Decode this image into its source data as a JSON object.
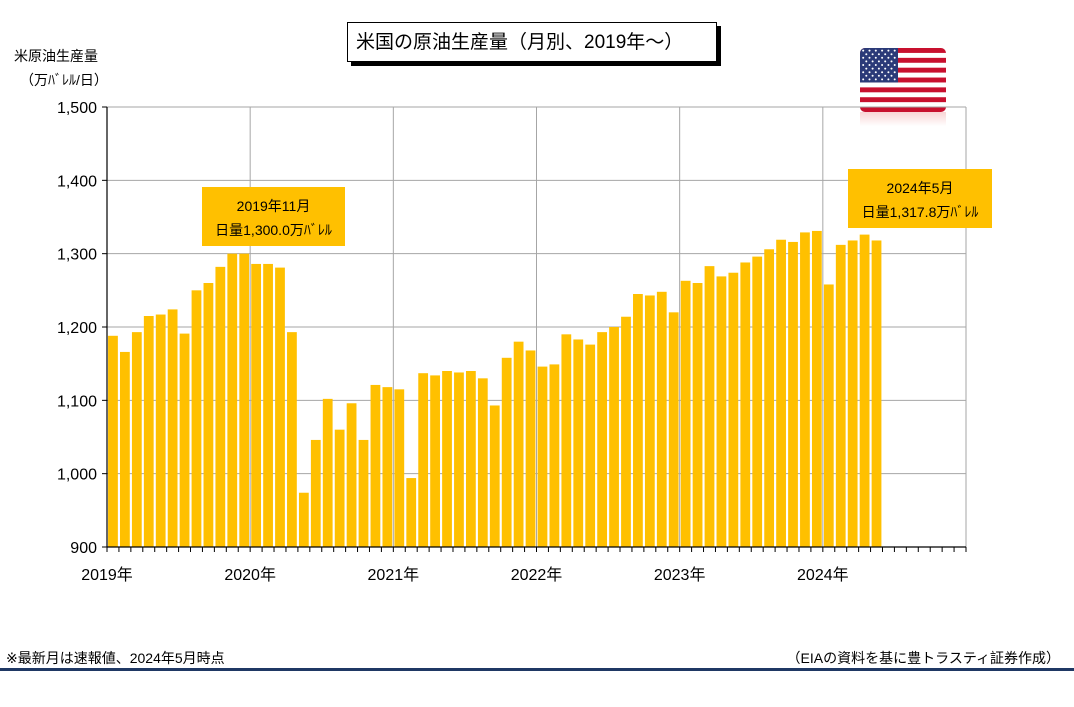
{
  "chart_data": {
    "type": "bar",
    "title": "米国の原油生産量（月別、2019年～）",
    "ylabel_line1": "米原油生産量",
    "ylabel_line2": "（万ﾊﾞﾚﾙ/日）",
    "ylim": [
      900,
      1500
    ],
    "yticks": [
      "1,500",
      "1,400",
      "1,300",
      "1,200",
      "1,100",
      "1,000",
      "900"
    ],
    "ytick_values": [
      1500,
      1400,
      1300,
      1200,
      1100,
      1000,
      900
    ],
    "x_year_labels": [
      "2019年",
      "2020年",
      "2021年",
      "2022年",
      "2023年",
      "2024年"
    ],
    "x_slots": 72,
    "bar_color": "#FFC000",
    "grid": true,
    "series": [
      {
        "values": [
          1188,
          1166,
          1193,
          1215,
          1217,
          1224,
          1191,
          1250,
          1260,
          1282,
          1300,
          1300,
          1286,
          1286,
          1281,
          1193,
          974,
          1046,
          1102,
          1060,
          1096,
          1046,
          1121,
          1118,
          1115,
          994,
          1137,
          1134,
          1140,
          1138,
          1140,
          1130,
          1093,
          1158,
          1180,
          1168,
          1146,
          1149,
          1190,
          1183,
          1176,
          1193,
          1200,
          1214,
          1245,
          1243,
          1248,
          1220,
          1263,
          1260,
          1283,
          1269,
          1274,
          1288,
          1296,
          1306,
          1319,
          1316,
          1329,
          1331,
          1258,
          1312,
          1318,
          1326,
          1318
        ]
      }
    ],
    "annotations": [
      {
        "line1": "2019年11月",
        "line2": "日量1,300.0万ﾊﾞﾚﾙ"
      },
      {
        "line1": "2024年5月",
        "line2": "日量1,317.8万ﾊﾞﾚﾙ"
      }
    ]
  },
  "flag_icon": "us-flag-icon",
  "footnote": "※最新月は速報値、2024年5月時点",
  "source": "（EIAの資料を基に豊トラスティ証券作成）"
}
